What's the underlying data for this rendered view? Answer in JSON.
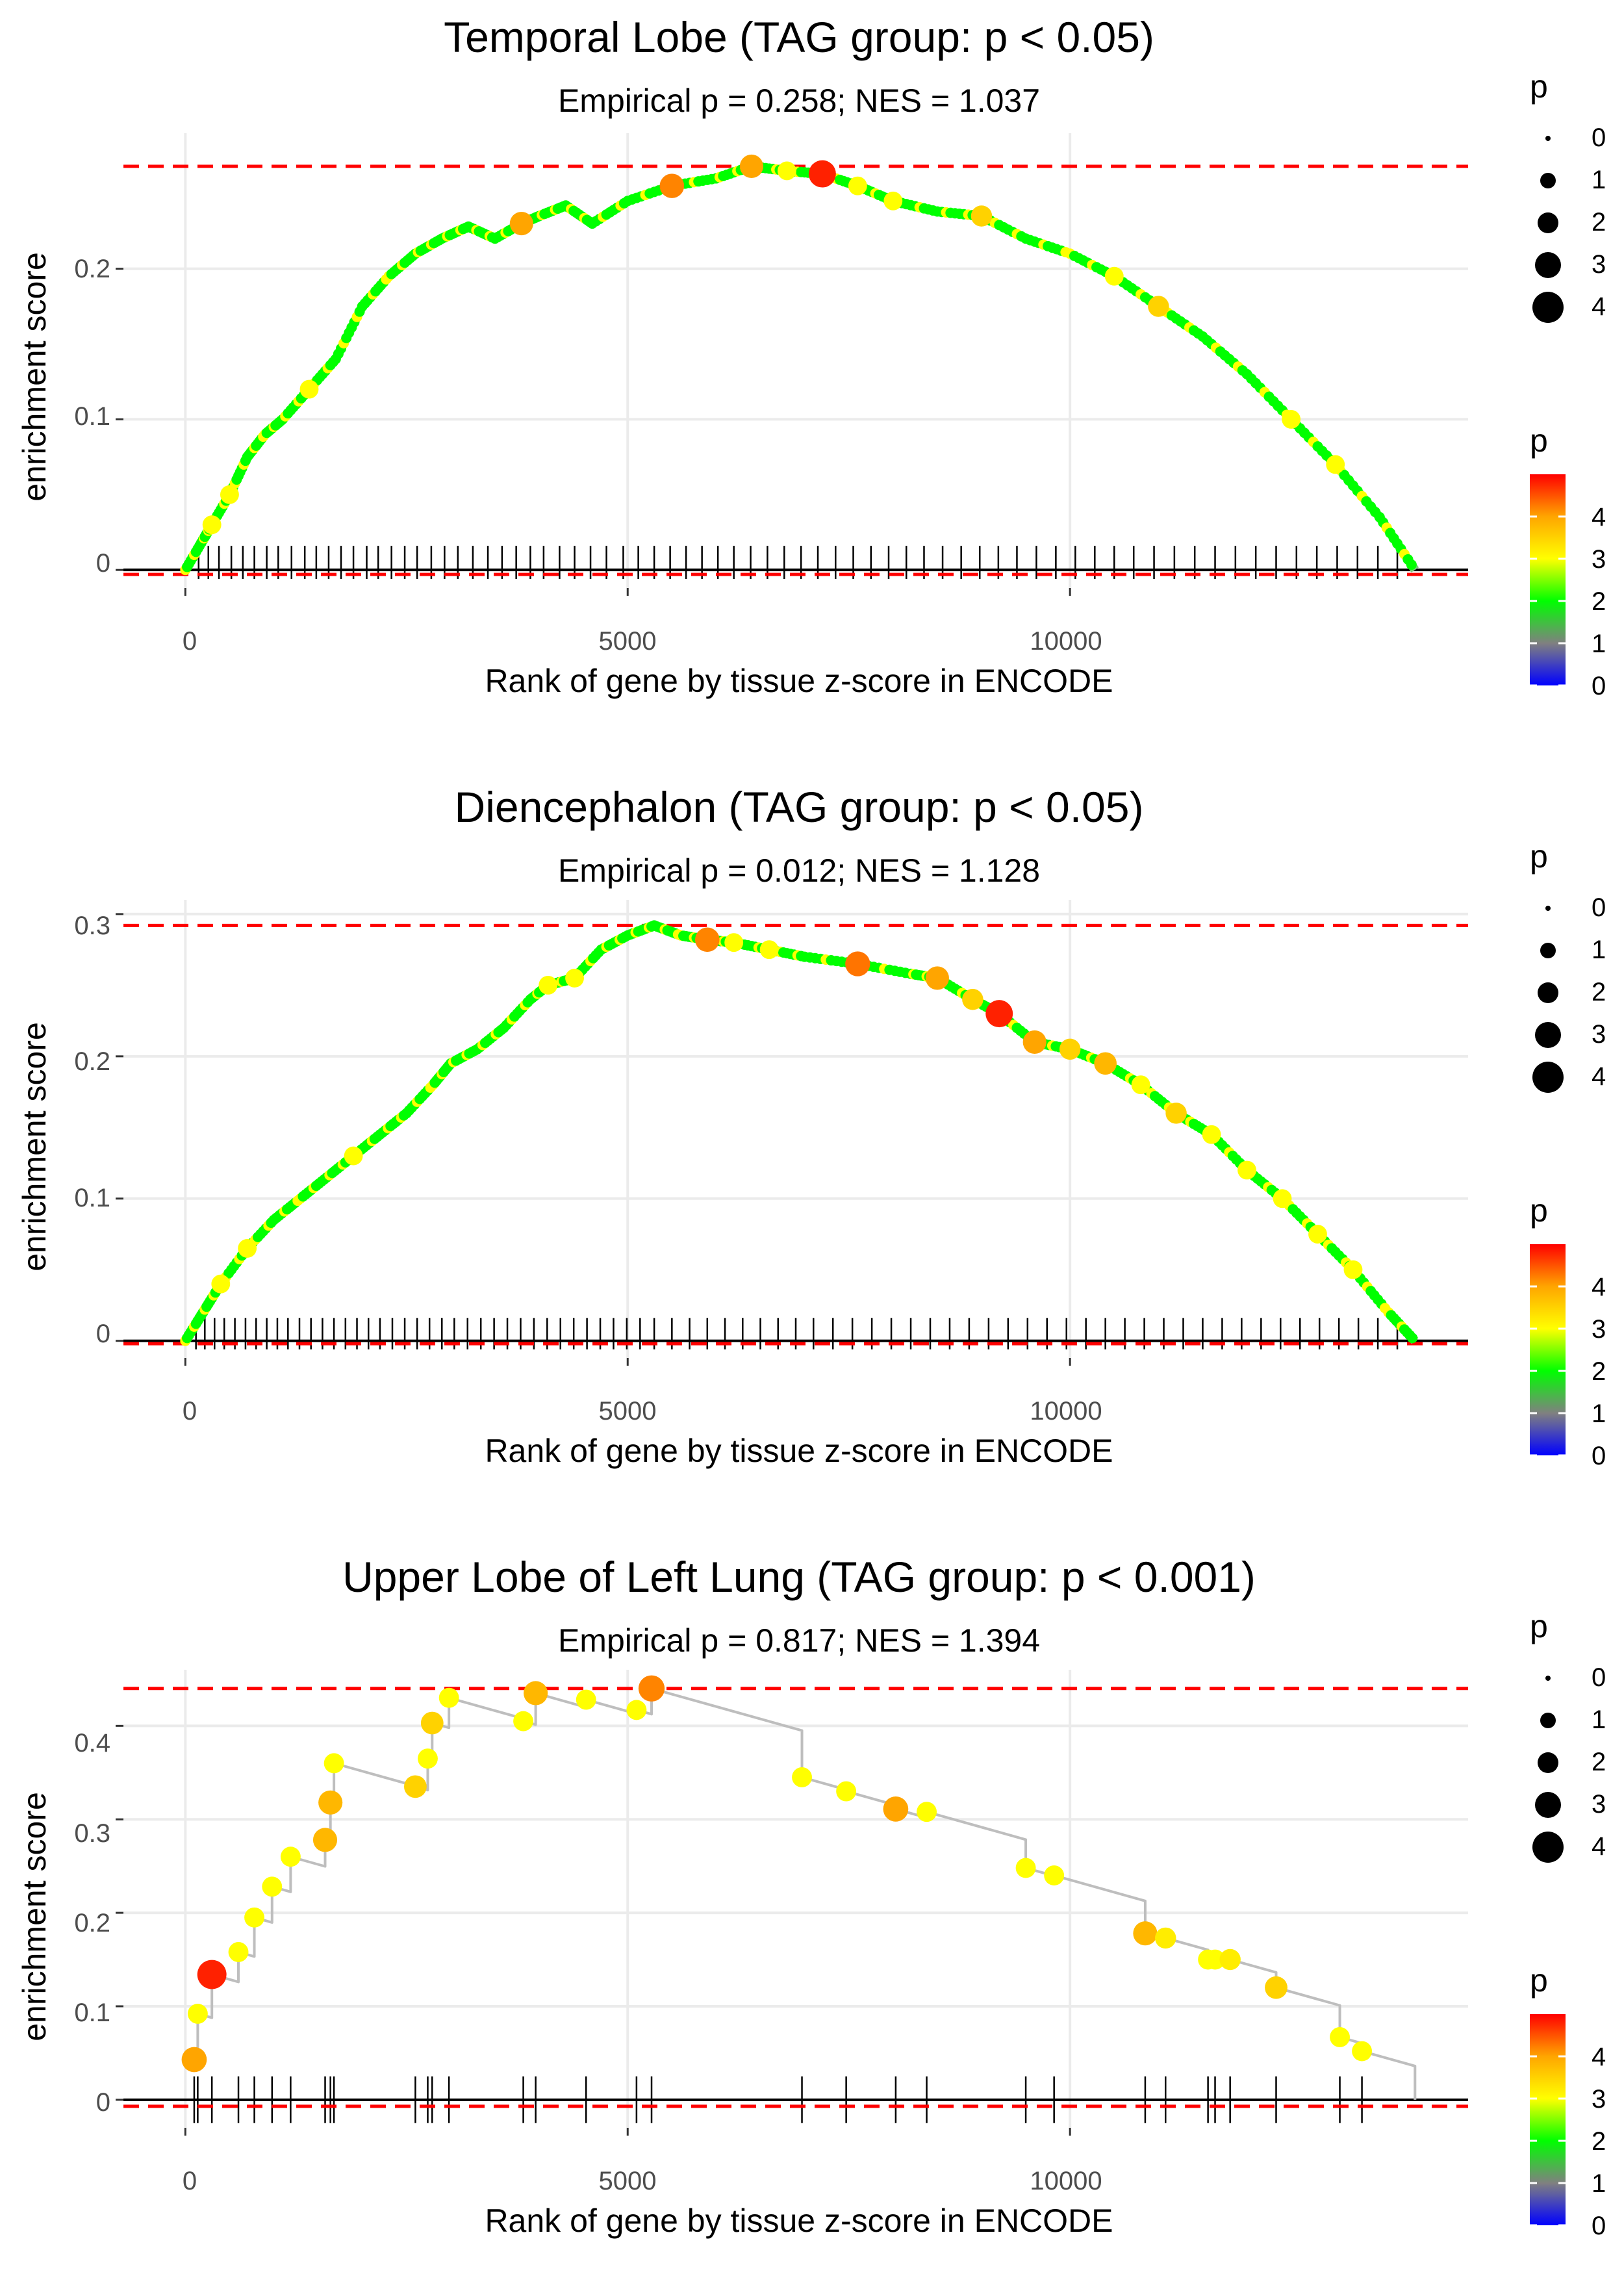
{
  "panels": [
    {
      "title": "Temporal Lobe (TAG group: p < 0.05)",
      "subtitle": "Empirical p = 0.258; NES = 1.037",
      "xlabel": "Rank of gene by tissue z-score in ENCODE",
      "ylabel": "enrichment score",
      "xticks": [
        0,
        5000,
        10000
      ],
      "yticks": [
        0.0,
        0.1,
        0.2
      ],
      "ylim": [
        -0.012,
        0.29
      ],
      "max_es": 0.268,
      "min_es": -0.003
    },
    {
      "title": "Diencephalon (TAG group: p < 0.05)",
      "subtitle": "Empirical p = 0.012; NES = 1.128",
      "xlabel": "Rank of gene by tissue z-score in ENCODE",
      "ylabel": "enrichment score",
      "xticks": [
        0,
        5000,
        10000
      ],
      "yticks": [
        0.0,
        0.1,
        0.2,
        0.3
      ],
      "ylim": [
        -0.012,
        0.31
      ],
      "max_es": 0.292,
      "min_es": -0.002
    },
    {
      "title": "Upper Lobe of Left Lung (TAG group: p < 0.001)",
      "subtitle": "Empirical p = 0.817; NES = 1.394",
      "xlabel": "Rank of gene by tissue z-score in ENCODE",
      "ylabel": "enrichment score",
      "xticks": [
        0,
        5000,
        10000
      ],
      "yticks": [
        0.0,
        0.1,
        0.2,
        0.3,
        0.4
      ],
      "ylim": [
        -0.03,
        0.46
      ],
      "max_es": 0.44,
      "min_es": -0.007
    }
  ],
  "legend": {
    "size_title": "p",
    "size_labels": [
      "0",
      "1",
      "2",
      "3",
      "4"
    ],
    "color_title": "p",
    "color_labels": [
      "4",
      "3",
      "2",
      "1",
      "0"
    ]
  },
  "colors": {
    "threshold_line": "#ff0000",
    "curve_line": "#bebebe",
    "grid": "#ebebeb",
    "ticks": "#333333"
  },
  "chart_data": [
    {
      "type": "line",
      "title": "Temporal Lobe (TAG group: p < 0.05)",
      "xlabel": "Rank of gene by tissue z-score in ENCODE",
      "ylabel": "enrichment score",
      "xlim": [
        -700,
        14500
      ],
      "ylim": [
        -0.012,
        0.29
      ],
      "reference_lines": [
        0.268,
        -0.003
      ],
      "series": [
        {
          "name": "enrichment score",
          "x": [
            0,
            200,
            300,
            500,
            700,
            900,
            1100,
            1400,
            1700,
            2000,
            2300,
            2600,
            2900,
            3200,
            3500,
            3800,
            4000,
            4300,
            4600,
            5000,
            5500,
            6000,
            6400,
            6800,
            7200,
            7600,
            8000,
            8500,
            9000,
            9500,
            10000,
            10500,
            11000,
            11500,
            12000,
            12500,
            13000,
            13500,
            13900
          ],
          "y": [
            0.0,
            0.02,
            0.03,
            0.05,
            0.075,
            0.09,
            0.1,
            0.12,
            0.14,
            0.175,
            0.195,
            0.21,
            0.22,
            0.228,
            0.22,
            0.23,
            0.235,
            0.242,
            0.23,
            0.245,
            0.255,
            0.26,
            0.268,
            0.265,
            0.263,
            0.255,
            0.245,
            0.238,
            0.235,
            0.22,
            0.21,
            0.195,
            0.175,
            0.155,
            0.13,
            0.1,
            0.07,
            0.035,
            0.0
          ],
          "p": [
            1.5,
            2,
            3,
            3,
            2,
            2,
            2,
            3,
            2,
            2,
            2,
            2,
            2,
            2,
            2,
            4,
            2,
            2,
            2,
            2,
            4.2,
            2,
            4,
            3,
            4.8,
            3,
            3,
            2,
            3.5,
            2.5,
            2,
            3,
            3.5,
            2,
            2,
            3,
            3,
            2.5,
            1.5
          ]
        }
      ],
      "hits": [
        150,
        260,
        380,
        520,
        650,
        780,
        920,
        1050,
        1200,
        1350,
        1480,
        1620,
        1760,
        1900,
        2050,
        2180,
        2330,
        2480,
        2620,
        2780,
        2930,
        3080,
        3250,
        3420,
        3580,
        3740,
        3900,
        4050,
        4230,
        4400,
        4580,
        4760,
        4950,
        5120,
        5300,
        5480,
        5660,
        5840,
        6020,
        6200,
        6390,
        6580,
        6770,
        6960,
        7150,
        7350,
        7550,
        7750,
        7950,
        8150,
        8350,
        8560,
        8770,
        8980,
        9190,
        9400,
        9620,
        9840,
        10060,
        10280,
        10500,
        10720,
        10950,
        11180,
        11410,
        11640,
        11870,
        12100,
        12330,
        12560,
        12790,
        13020,
        13250,
        13480,
        13700
      ]
    },
    {
      "type": "line",
      "title": "Diencephalon (TAG group: p < 0.05)",
      "xlabel": "Rank of gene by tissue z-score in ENCODE",
      "ylabel": "enrichment score",
      "xlim": [
        -700,
        14500
      ],
      "ylim": [
        -0.012,
        0.31
      ],
      "reference_lines": [
        0.292,
        -0.002
      ],
      "series": [
        {
          "name": "enrichment score",
          "x": [
            0,
            200,
            400,
            700,
            1000,
            1300,
            1600,
            1900,
            2200,
            2500,
            2800,
            3000,
            3300,
            3600,
            3900,
            4100,
            4400,
            4700,
            5000,
            5300,
            5600,
            5900,
            6200,
            6600,
            7000,
            7600,
            8200,
            8500,
            8900,
            9200,
            9600,
            10000,
            10400,
            10800,
            11200,
            11600,
            12000,
            12400,
            12800,
            13200,
            13600,
            13900
          ],
          "y": [
            0.0,
            0.02,
            0.04,
            0.065,
            0.085,
            0.1,
            0.115,
            0.13,
            0.145,
            0.16,
            0.18,
            0.195,
            0.205,
            0.22,
            0.24,
            0.25,
            0.255,
            0.275,
            0.285,
            0.292,
            0.285,
            0.282,
            0.28,
            0.275,
            0.27,
            0.265,
            0.258,
            0.255,
            0.24,
            0.23,
            0.21,
            0.205,
            0.195,
            0.18,
            0.16,
            0.145,
            0.12,
            0.1,
            0.075,
            0.05,
            0.02,
            0.0
          ],
          "p": [
            1.5,
            2,
            3,
            3,
            2.5,
            2,
            2,
            3,
            2,
            2,
            2,
            2,
            2,
            2,
            2,
            3,
            3,
            2,
            2,
            2,
            2.5,
            4.2,
            3,
            3,
            2,
            4.3,
            2.5,
            4,
            3.5,
            4.8,
            4,
            3.5,
            3.8,
            3,
            3.5,
            3,
            3,
            3,
            3,
            3,
            2.5,
            1.5
          ]
        }
      ],
      "hits": [
        120,
        220,
        330,
        440,
        560,
        680,
        800,
        920,
        1040,
        1160,
        1290,
        1420,
        1550,
        1680,
        1810,
        1940,
        2070,
        2200,
        2340,
        2480,
        2620,
        2760,
        2900,
        3040,
        3190,
        3340,
        3490,
        3640,
        3790,
        3940,
        4090,
        4240,
        4390,
        4540,
        4690,
        4840,
        4990,
        5140,
        5300,
        5500,
        5700,
        5900,
        6100,
        6300,
        6500,
        6700,
        6900,
        7100,
        7320,
        7540,
        7760,
        7980,
        8200,
        8420,
        8640,
        8860,
        9080,
        9300,
        9520,
        9740,
        9960,
        10180,
        10400,
        10620,
        10840,
        11060,
        11280,
        11500,
        11720,
        11940,
        12160,
        12380,
        12600,
        12820,
        13040,
        13260,
        13480,
        13700
      ]
    },
    {
      "type": "line",
      "title": "Upper Lobe of Left Lung (TAG group: p < 0.001)",
      "xlabel": "Rank of gene by tissue z-score in ENCODE",
      "ylabel": "enrichment score",
      "xlim": [
        -700,
        14500
      ],
      "ylim": [
        -0.03,
        0.46
      ],
      "reference_lines": [
        0.44,
        -0.007
      ],
      "series": [
        {
          "name": "enrichment score",
          "x": [
            100,
            140,
            300,
            600,
            780,
            980,
            1190,
            1580,
            1640,
            1680,
            2600,
            2740,
            2790,
            2980,
            3820,
            3960,
            4530,
            5100,
            5270,
            6970,
            7470,
            8030,
            8380,
            9500,
            9820,
            10850,
            11080,
            11560,
            11640,
            11810,
            12330,
            13050,
            13300,
            13900
          ],
          "y": [
            0.043,
            0.092,
            0.134,
            0.158,
            0.195,
            0.228,
            0.26,
            0.278,
            0.318,
            0.36,
            0.335,
            0.365,
            0.403,
            0.43,
            0.405,
            0.435,
            0.428,
            0.417,
            0.44,
            0.345,
            0.33,
            0.311,
            0.308,
            0.248,
            0.24,
            0.178,
            0.173,
            0.15,
            0.15,
            0.15,
            0.12,
            0.067,
            0.052,
            0.0
          ],
          "p": [
            4,
            3,
            4.8,
            3,
            3,
            3,
            3,
            3.8,
            3.8,
            3,
            3.5,
            3,
            3.5,
            3,
            3,
            3.8,
            3,
            3,
            4.2,
            3,
            3,
            4,
            3,
            3,
            3,
            3.8,
            3.2,
            3,
            3,
            3.2,
            3.5,
            3,
            3,
            0
          ]
        }
      ],
      "hits": [
        100,
        140,
        300,
        600,
        780,
        980,
        1190,
        1580,
        1640,
        1680,
        2600,
        2740,
        2790,
        2980,
        3820,
        3960,
        4530,
        5100,
        5270,
        6970,
        7470,
        8030,
        8380,
        9500,
        9820,
        10850,
        11080,
        11560,
        11640,
        11810,
        12330,
        13050,
        13300
      ]
    }
  ]
}
